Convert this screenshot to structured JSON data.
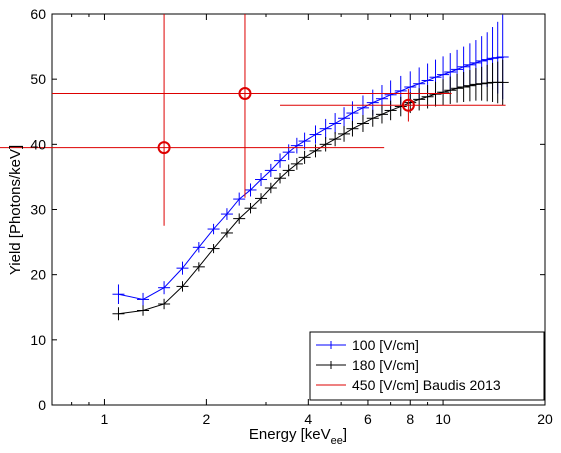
{
  "chart_data": {
    "type": "line",
    "xscale": "log",
    "xlim": [
      0.7,
      20
    ],
    "ylim": [
      0,
      60
    ],
    "x_ticks": [
      1,
      2,
      4,
      6,
      8,
      10,
      20
    ],
    "y_ticks": [
      0,
      10,
      20,
      30,
      40,
      50,
      60
    ],
    "xlabel": "Energy [keV",
    "xlabel_sub": "ee",
    "xlabel_end": "]",
    "ylabel": "Yield [Photons/keV]",
    "legend_position": "bottom-right",
    "series": [
      {
        "name": "100 [V/cm]",
        "color": "#0000ff",
        "style": "line+errorbars",
        "x": [
          1.1,
          1.3,
          1.5,
          1.7,
          1.9,
          2.1,
          2.3,
          2.5,
          2.7,
          2.9,
          3.1,
          3.3,
          3.5,
          3.7,
          3.9,
          4.2,
          4.5,
          4.8,
          5.1,
          5.4,
          5.8,
          6.2,
          6.6,
          7.0,
          7.5,
          8.0,
          8.5,
          9.0,
          9.5,
          10.0,
          10.5,
          11.0,
          11.5,
          12.0,
          12.5,
          13.0,
          13.5,
          14.0,
          14.5,
          15.0
        ],
        "y": [
          17.0,
          16.2,
          18.0,
          21.0,
          24.2,
          27.0,
          29.3,
          31.6,
          33.0,
          34.6,
          36.0,
          37.5,
          38.8,
          39.8,
          40.5,
          41.5,
          42.4,
          43.2,
          44.0,
          44.8,
          45.6,
          46.4,
          47.0,
          47.6,
          48.2,
          48.8,
          49.3,
          49.8,
          50.3,
          50.7,
          51.1,
          51.5,
          51.9,
          52.2,
          52.5,
          52.8,
          53.0,
          53.2,
          53.3,
          53.4
        ],
        "yerr": [
          1.5,
          1.0,
          1.0,
          1.0,
          0.8,
          0.8,
          0.9,
          1.0,
          1.0,
          1.0,
          1.0,
          1.1,
          1.2,
          1.2,
          1.3,
          1.4,
          1.5,
          1.6,
          1.7,
          1.8,
          1.9,
          2.0,
          2.1,
          2.2,
          2.3,
          2.4,
          2.5,
          2.6,
          2.7,
          2.8,
          2.9,
          3.0,
          3.1,
          3.3,
          3.5,
          3.8,
          4.2,
          4.8,
          5.5,
          6.5
        ]
      },
      {
        "name": "180 [V/cm]",
        "color": "#000000",
        "style": "line+errorbars",
        "x": [
          1.1,
          1.3,
          1.5,
          1.7,
          1.9,
          2.1,
          2.3,
          2.5,
          2.7,
          2.9,
          3.1,
          3.3,
          3.5,
          3.7,
          3.9,
          4.2,
          4.5,
          4.8,
          5.1,
          5.4,
          5.8,
          6.2,
          6.6,
          7.0,
          7.5,
          8.0,
          8.5,
          9.0,
          9.5,
          10.0,
          10.5,
          11.0,
          11.5,
          12.0,
          12.5,
          13.0,
          13.5,
          14.0,
          14.5,
          15.0
        ],
        "y": [
          14.0,
          14.5,
          15.5,
          18.2,
          21.2,
          24.0,
          26.4,
          28.6,
          30.2,
          31.7,
          33.3,
          34.8,
          36.0,
          37.0,
          38.0,
          39.0,
          40.0,
          40.8,
          41.6,
          42.4,
          43.2,
          44.0,
          44.6,
          45.2,
          45.8,
          46.4,
          46.9,
          47.3,
          47.7,
          48.0,
          48.3,
          48.6,
          48.8,
          49.0,
          49.2,
          49.3,
          49.4,
          49.5,
          49.5,
          49.5
        ],
        "yerr": [
          1.0,
          0.8,
          0.8,
          0.8,
          0.7,
          0.7,
          0.7,
          0.8,
          0.8,
          0.8,
          0.8,
          0.8,
          0.9,
          0.9,
          1.0,
          1.0,
          1.1,
          1.1,
          1.2,
          1.2,
          1.3,
          1.3,
          1.4,
          1.5,
          1.5,
          1.6,
          1.7,
          1.8,
          1.9,
          2.0,
          2.1,
          2.2,
          2.3,
          2.4,
          2.5,
          2.6,
          2.8,
          3.0,
          3.2,
          3.5
        ]
      },
      {
        "name": "450 [V/cm] Baudis 2013",
        "color": "#dd0000",
        "style": "circles+errorbars",
        "x": [
          1.5,
          2.6,
          7.9
        ],
        "y": [
          39.5,
          47.8,
          46.0
        ],
        "xerr_low": [
          1.5,
          1.9,
          4.6
        ],
        "xerr_high": [
          5.2,
          8.0,
          7.4
        ],
        "yerr_low": [
          12.0,
          16.0,
          2.5
        ],
        "yerr_high": [
          20.5,
          12.2,
          2.5
        ]
      }
    ]
  }
}
